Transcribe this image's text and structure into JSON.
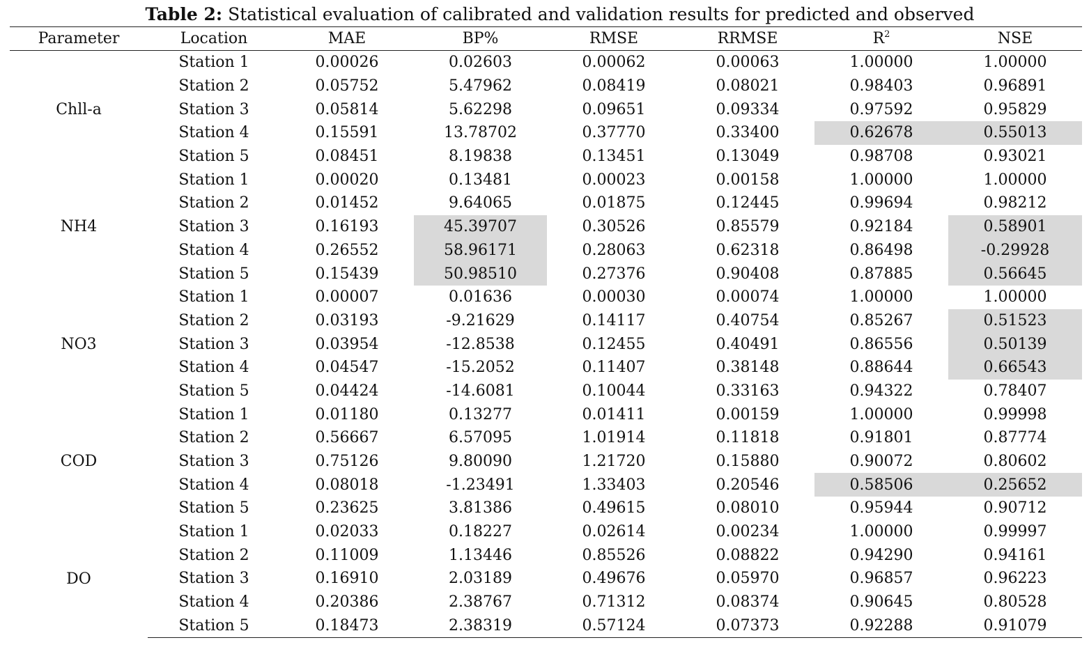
{
  "caption": {
    "label": "Table 2:",
    "text": " Statistical evaluation of calibrated and validation results for predicted and observed"
  },
  "headers": [
    "Parameter",
    "Location",
    "MAE",
    "BP%",
    "RMSE",
    "RRMSE",
    "R",
    "NSE"
  ],
  "r_superscript": "2",
  "highlight_color": "#d9d9d9",
  "groups": [
    {
      "parameter": "Chll-a",
      "rows": [
        {
          "location": "Station 1",
          "values": [
            "0.00026",
            "0.02603",
            "0.00062",
            "0.00063",
            "1.00000",
            "1.00000"
          ],
          "highlighted": []
        },
        {
          "location": "Station 2",
          "values": [
            "0.05752",
            "5.47962",
            "0.08419",
            "0.08021",
            "0.98403",
            "0.96891"
          ],
          "highlighted": []
        },
        {
          "location": "Station 3",
          "values": [
            "0.05814",
            "5.62298",
            "0.09651",
            "0.09334",
            "0.97592",
            "0.95829"
          ],
          "highlighted": []
        },
        {
          "location": "Station 4",
          "values": [
            "0.15591",
            "13.78702",
            "0.37770",
            "0.33400",
            "0.62678",
            "0.55013"
          ],
          "highlighted": [
            4,
            5
          ]
        },
        {
          "location": "Station 5",
          "values": [
            "0.08451",
            "8.19838",
            "0.13451",
            "0.13049",
            "0.98708",
            "0.93021"
          ],
          "highlighted": []
        }
      ]
    },
    {
      "parameter": "NH4",
      "rows": [
        {
          "location": "Station 1",
          "values": [
            "0.00020",
            "0.13481",
            "0.00023",
            "0.00158",
            "1.00000",
            "1.00000"
          ],
          "highlighted": []
        },
        {
          "location": "Station 2",
          "values": [
            "0.01452",
            "9.64065",
            "0.01875",
            "0.12445",
            "0.99694",
            "0.98212"
          ],
          "highlighted": []
        },
        {
          "location": "Station 3",
          "values": [
            "0.16193",
            "45.39707",
            "0.30526",
            "0.85579",
            "0.92184",
            "0.58901"
          ],
          "highlighted": [
            1,
            5
          ]
        },
        {
          "location": "Station 4",
          "values": [
            "0.26552",
            "58.96171",
            "0.28063",
            "0.62318",
            "0.86498",
            "-0.29928"
          ],
          "highlighted": [
            1,
            5
          ]
        },
        {
          "location": "Station 5",
          "values": [
            "0.15439",
            "50.98510",
            "0.27376",
            "0.90408",
            "0.87885",
            "0.56645"
          ],
          "highlighted": [
            1,
            5
          ]
        }
      ]
    },
    {
      "parameter": "NO3",
      "rows": [
        {
          "location": "Station 1",
          "values": [
            "0.00007",
            "0.01636",
            "0.00030",
            "0.00074",
            "1.00000",
            "1.00000"
          ],
          "highlighted": []
        },
        {
          "location": "Station 2",
          "values": [
            "0.03193",
            "-9.21629",
            "0.14117",
            "0.40754",
            "0.85267",
            "0.51523"
          ],
          "highlighted": [
            5
          ]
        },
        {
          "location": "Station 3",
          "values": [
            "0.03954",
            "-12.8538",
            "0.12455",
            "0.40491",
            "0.86556",
            "0.50139"
          ],
          "highlighted": [
            5
          ]
        },
        {
          "location": "Station 4",
          "values": [
            "0.04547",
            "-15.2052",
            "0.11407",
            "0.38148",
            "0.88644",
            "0.66543"
          ],
          "highlighted": [
            5
          ]
        },
        {
          "location": "Station 5",
          "values": [
            "0.04424",
            "-14.6081",
            "0.10044",
            "0.33163",
            "0.94322",
            "0.78407"
          ],
          "highlighted": []
        }
      ]
    },
    {
      "parameter": "COD",
      "rows": [
        {
          "location": "Station 1",
          "values": [
            "0.01180",
            "0.13277",
            "0.01411",
            "0.00159",
            "1.00000",
            "0.99998"
          ],
          "highlighted": []
        },
        {
          "location": "Station 2",
          "values": [
            "0.56667",
            "6.57095",
            "1.01914",
            "0.11818",
            "0.91801",
            "0.87774"
          ],
          "highlighted": []
        },
        {
          "location": "Station 3",
          "values": [
            "0.75126",
            "9.80090",
            "1.21720",
            "0.15880",
            "0.90072",
            "0.80602"
          ],
          "highlighted": []
        },
        {
          "location": "Station 4",
          "values": [
            "0.08018",
            "-1.23491",
            "1.33403",
            "0.20546",
            "0.58506",
            "0.25652"
          ],
          "highlighted": [
            4,
            5
          ]
        },
        {
          "location": "Station 5",
          "values": [
            "0.23625",
            "3.81386",
            "0.49615",
            "0.08010",
            "0.95944",
            "0.90712"
          ],
          "highlighted": []
        }
      ]
    },
    {
      "parameter": "DO",
      "rows": [
        {
          "location": "Station 1",
          "values": [
            "0.02033",
            "0.18227",
            "0.02614",
            "0.00234",
            "1.00000",
            "0.99997"
          ],
          "highlighted": []
        },
        {
          "location": "Station 2",
          "values": [
            "0.11009",
            "1.13446",
            "0.85526",
            "0.08822",
            "0.94290",
            "0.94161"
          ],
          "highlighted": []
        },
        {
          "location": "Station 3",
          "values": [
            "0.16910",
            "2.03189",
            "0.49676",
            "0.05970",
            "0.96857",
            "0.96223"
          ],
          "highlighted": []
        },
        {
          "location": "Station 4",
          "values": [
            "0.20386",
            "2.38767",
            "0.71312",
            "0.08374",
            "0.90645",
            "0.80528"
          ],
          "highlighted": []
        },
        {
          "location": "Station 5",
          "values": [
            "0.18473",
            "2.38319",
            "0.57124",
            "0.07373",
            "0.92288",
            "0.91079"
          ],
          "highlighted": []
        }
      ]
    }
  ]
}
